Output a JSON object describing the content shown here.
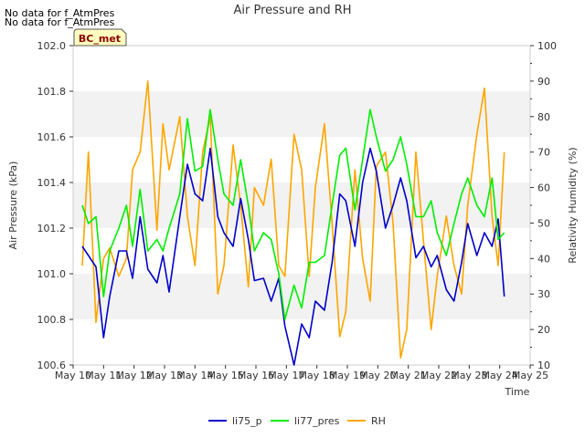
{
  "notices": [
    "No data for f_AtmPres",
    "No data for f_AtmPres"
  ],
  "badge": "BC_met",
  "chart_data": {
    "type": "line",
    "title": "Air Pressure and RH",
    "xlabel": "Time",
    "ylabel_left": "Air Pressure (kPa)",
    "ylabel_right": "Relativity Humidity (%)",
    "x_ticks": [
      "May 10",
      "May 11",
      "May 12",
      "May 13",
      "May 14",
      "May 15",
      "May 16",
      "May 17",
      "May 18",
      "May 19",
      "May 20",
      "May 21",
      "May 22",
      "May 23",
      "May 24",
      "May 25"
    ],
    "ylim_left": [
      100.6,
      102.0
    ],
    "yticks_left": [
      "100.6",
      "100.8",
      "101.0",
      "101.2",
      "101.4",
      "101.6",
      "101.8",
      "102.0"
    ],
    "ylim_right": [
      10,
      100
    ],
    "yticks_right": [
      "10",
      "20",
      "30",
      "40",
      "50",
      "60",
      "70",
      "80",
      "90",
      "100"
    ],
    "grid": "horizontal bands",
    "legend_position": "bottom",
    "x_day_range": [
      10,
      25
    ],
    "series": [
      {
        "name": "li75_p",
        "color": "#0000cc",
        "axis": "left",
        "x": [
          10.3,
          10.5,
          10.75,
          11.0,
          11.2,
          11.5,
          11.75,
          11.95,
          12.2,
          12.45,
          12.75,
          12.95,
          13.15,
          13.5,
          13.75,
          14.0,
          14.25,
          14.5,
          14.75,
          14.95,
          15.25,
          15.5,
          15.75,
          15.95,
          16.25,
          16.5,
          16.75,
          16.95,
          17.25,
          17.5,
          17.75,
          17.95,
          18.25,
          18.5,
          18.75,
          18.95,
          19.25,
          19.5,
          19.75,
          19.95,
          20.25,
          20.5,
          20.75,
          20.95,
          21.25,
          21.5,
          21.75,
          21.95,
          22.25,
          22.5,
          22.75,
          22.95,
          23.25,
          23.5,
          23.75,
          23.95,
          24.15
        ],
        "values": [
          101.12,
          101.08,
          101.03,
          100.72,
          100.9,
          101.1,
          101.1,
          100.98,
          101.25,
          101.02,
          100.96,
          101.08,
          100.92,
          101.25,
          101.48,
          101.35,
          101.32,
          101.55,
          101.25,
          101.18,
          101.12,
          101.33,
          101.15,
          100.97,
          100.98,
          100.88,
          100.98,
          100.77,
          100.6,
          100.78,
          100.72,
          100.88,
          100.84,
          101.05,
          101.35,
          101.32,
          101.12,
          101.4,
          101.55,
          101.45,
          101.2,
          101.3,
          101.42,
          101.32,
          101.07,
          101.12,
          101.03,
          101.08,
          100.93,
          100.88,
          101.05,
          101.22,
          101.08,
          101.18,
          101.12,
          101.24,
          100.9
        ]
      },
      {
        "name": "li77_pres",
        "color": "#00ee00",
        "axis": "left",
        "x": [
          10.3,
          10.5,
          10.75,
          11.0,
          11.2,
          11.5,
          11.75,
          11.95,
          12.2,
          12.45,
          12.75,
          12.95,
          13.15,
          13.5,
          13.75,
          14.0,
          14.25,
          14.5,
          14.75,
          14.95,
          15.25,
          15.5,
          15.75,
          15.95,
          16.25,
          16.5,
          16.75,
          16.95,
          17.25,
          17.5,
          17.75,
          17.95,
          18.25,
          18.5,
          18.75,
          18.95,
          19.25,
          19.5,
          19.75,
          19.95,
          20.25,
          20.5,
          20.75,
          20.95,
          21.25,
          21.5,
          21.75,
          21.95,
          22.25,
          22.5,
          22.75,
          22.95,
          23.25,
          23.5,
          23.75,
          23.95,
          24.15
        ],
        "values": [
          101.3,
          101.22,
          101.25,
          100.9,
          101.1,
          101.2,
          101.3,
          101.12,
          101.37,
          101.1,
          101.15,
          101.1,
          101.2,
          101.35,
          101.68,
          101.45,
          101.47,
          101.72,
          101.5,
          101.35,
          101.3,
          101.5,
          101.3,
          101.1,
          101.18,
          101.15,
          101.0,
          100.8,
          100.95,
          100.85,
          101.05,
          101.05,
          101.08,
          101.3,
          101.52,
          101.55,
          101.28,
          101.5,
          101.72,
          101.6,
          101.45,
          101.5,
          101.6,
          101.48,
          101.25,
          101.25,
          101.32,
          101.18,
          101.08,
          101.22,
          101.35,
          101.42,
          101.3,
          101.25,
          101.42,
          101.15,
          101.18
        ]
      },
      {
        "name": "RH",
        "color": "#ffa500",
        "axis": "right",
        "x": [
          10.3,
          10.5,
          10.75,
          11.0,
          11.2,
          11.5,
          11.75,
          11.95,
          12.2,
          12.45,
          12.75,
          12.95,
          13.15,
          13.5,
          13.75,
          14.0,
          14.25,
          14.5,
          14.75,
          14.95,
          15.25,
          15.5,
          15.75,
          15.95,
          16.25,
          16.5,
          16.75,
          16.95,
          17.25,
          17.5,
          17.75,
          17.95,
          18.25,
          18.5,
          18.75,
          18.95,
          19.25,
          19.5,
          19.75,
          19.95,
          20.25,
          20.5,
          20.75,
          20.95,
          21.25,
          21.5,
          21.75,
          21.95,
          22.25,
          22.5,
          22.75,
          22.95,
          23.25,
          23.5,
          23.75,
          23.95,
          24.15
        ],
        "values": [
          38,
          70,
          22,
          40,
          43,
          35,
          40,
          65,
          70,
          90,
          48,
          78,
          65,
          80,
          52,
          38,
          70,
          80,
          30,
          38,
          72,
          55,
          32,
          60,
          55,
          68,
          38,
          35,
          75,
          65,
          35,
          60,
          78,
          50,
          18,
          25,
          65,
          40,
          28,
          66,
          70,
          50,
          12,
          20,
          70,
          45,
          20,
          35,
          52,
          38,
          30,
          55,
          75,
          88,
          52,
          38,
          70
        ]
      }
    ]
  }
}
